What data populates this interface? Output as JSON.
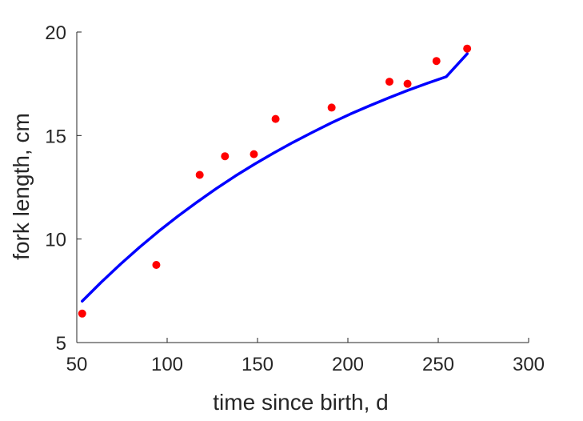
{
  "chart_data": {
    "type": "scatter",
    "title": "",
    "xlabel": "time since birth, d",
    "ylabel": "fork length, cm",
    "xlim": [
      50,
      300
    ],
    "ylim": [
      5,
      20
    ],
    "xticks": [
      50,
      100,
      150,
      200,
      250,
      300
    ],
    "yticks": [
      5,
      10,
      15,
      20
    ],
    "grid": false,
    "series": [
      {
        "kind": "points",
        "color": "#ff0000",
        "x": [
          53,
          94,
          118,
          132,
          148,
          160,
          191,
          223,
          233,
          249,
          266
        ],
        "y": [
          6.4,
          8.75,
          13.1,
          14.0,
          14.1,
          15.8,
          16.35,
          17.6,
          17.5,
          18.6,
          19.2
        ]
      },
      {
        "kind": "fit-curve",
        "color": "#0000ff",
        "x": [
          53,
          63.6,
          74.2,
          84.8,
          95.4,
          106,
          116.6,
          127.2,
          137.8,
          148.4,
          159,
          169.6,
          180.2,
          190.8,
          201.4,
          212,
          222.6,
          233.2,
          243.8,
          254.4,
          266
        ],
        "y": [
          7.0,
          7.92,
          8.79,
          9.61,
          10.38,
          11.11,
          11.79,
          12.44,
          13.05,
          13.62,
          14.16,
          14.67,
          15.15,
          15.61,
          16.04,
          16.44,
          16.82,
          17.18,
          17.52,
          17.84,
          18.95
        ]
      }
    ]
  }
}
